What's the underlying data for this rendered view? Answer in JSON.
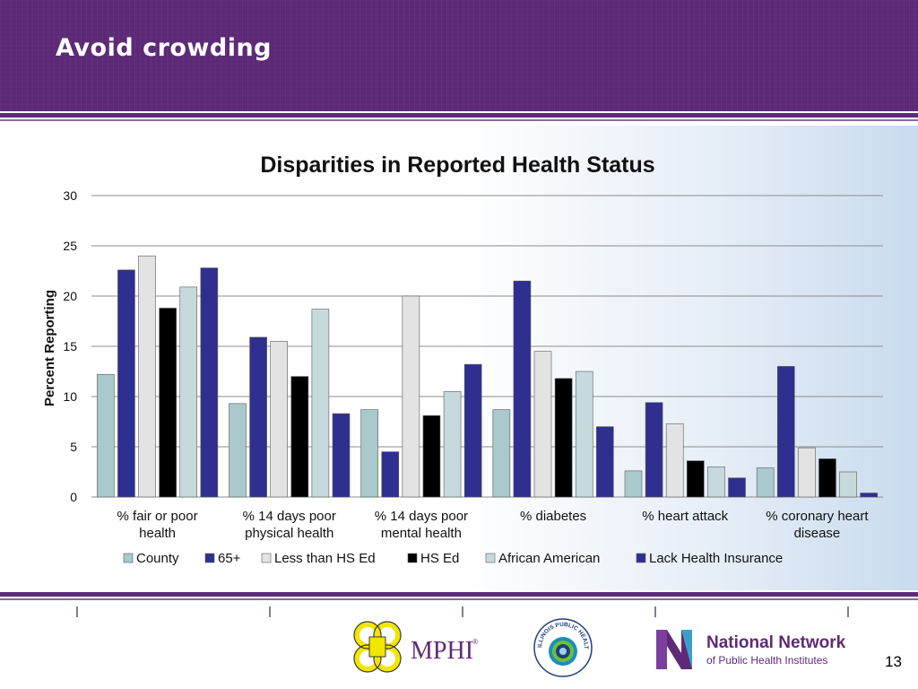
{
  "slide": {
    "title": "Avoid crowding",
    "page_number": "13"
  },
  "logos": {
    "mphi_text": "MPHI",
    "mphi_reg": "®",
    "iphi_text": "ILLINOIS PUBLIC HEALTH INSTITUTE",
    "nnphi_line1": "National Network",
    "nnphi_line2": "of Public Health Institutes"
  },
  "colors": {
    "header_purple": "#5e2a78",
    "county": "#a9c9cc",
    "age65": "#2e2f8f",
    "less_hs": "#e3e3e3",
    "hs_ed": "#000000",
    "african_american": "#c6d9dc",
    "lack_insurance": "#2e2f8f"
  },
  "chart_data": {
    "type": "bar",
    "title": "Disparities in Reported Health Status",
    "xlabel": "",
    "ylabel": "Percent Reporting",
    "ylim": [
      0,
      30
    ],
    "yticks": [
      0,
      5,
      10,
      15,
      20,
      25,
      30
    ],
    "grid": true,
    "legend_position": "bottom",
    "categories": [
      [
        "% fair or poor",
        "health"
      ],
      [
        "% 14 days poor",
        "physical health"
      ],
      [
        "% 14 days poor",
        "mental health"
      ],
      [
        "% diabetes"
      ],
      [
        "% heart attack"
      ],
      [
        "% coronary heart",
        "disease"
      ]
    ],
    "series": [
      {
        "name": "County",
        "color": "#a9c9cc",
        "values": [
          12.2,
          9.3,
          8.7,
          8.7,
          2.6,
          2.9
        ]
      },
      {
        "name": "65+",
        "color": "#2e2f8f",
        "values": [
          22.6,
          15.9,
          4.5,
          21.5,
          9.4,
          13.0
        ]
      },
      {
        "name": "Less than HS Ed",
        "color": "#e3e3e3",
        "values": [
          24.0,
          15.5,
          20.0,
          14.5,
          7.3,
          4.9
        ]
      },
      {
        "name": "HS Ed",
        "color": "#000000",
        "values": [
          18.8,
          12.0,
          8.1,
          11.8,
          3.6,
          3.8
        ]
      },
      {
        "name": "African American",
        "color": "#c6d9dc",
        "values": [
          20.9,
          18.7,
          10.5,
          12.5,
          3.0,
          2.5
        ]
      },
      {
        "name": "Lack Health Insurance",
        "color": "#2e2f8f",
        "values": [
          22.8,
          8.3,
          13.2,
          7.0,
          1.9,
          0.4
        ]
      }
    ]
  }
}
